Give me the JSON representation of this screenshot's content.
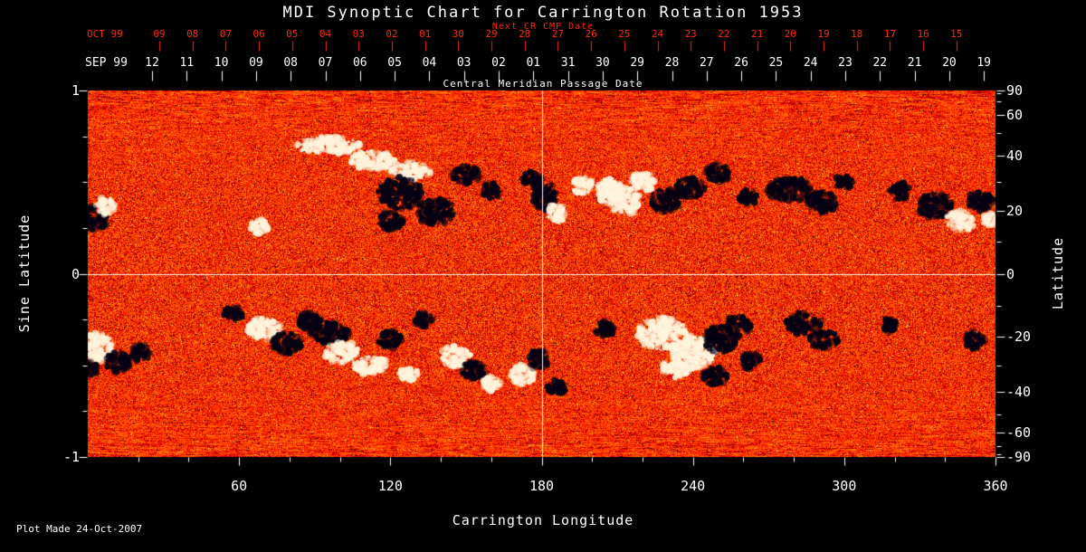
{
  "chart_data": {
    "type": "heatmap",
    "title": "MDI Synoptic Chart for Carrington Rotation 1953",
    "xlabel": "Carrington Longitude",
    "ylabel_left": "Sine Latitude",
    "ylabel_right": "Latitude",
    "plot_made": "Plot Made 24-Oct-2007",
    "xlim": [
      0,
      360
    ],
    "sine_lat_lim": [
      -1,
      1
    ],
    "x_ticks": [
      60,
      120,
      180,
      240,
      300,
      360
    ],
    "left_ticks": [
      "1",
      "0",
      "-1"
    ],
    "right_ticks_deg": [
      90,
      60,
      40,
      20,
      0,
      -20,
      -40,
      -60,
      -90
    ],
    "grid_lines": {
      "longitude": 180,
      "sine_latitude": 0
    },
    "next_cr_axis": {
      "title": "Next CR CMP Date",
      "prefix": "OCT 99",
      "days": [
        "09",
        "08",
        "07",
        "06",
        "05",
        "04",
        "03",
        "02",
        "01",
        "30",
        "29",
        "28",
        "27",
        "26",
        "25",
        "24",
        "23",
        "22",
        "21",
        "20",
        "19",
        "18",
        "17",
        "16",
        "15"
      ]
    },
    "cmp_axis": {
      "title": "Central Meridian Passage Date",
      "prefix": "SEP 99",
      "days": [
        "12",
        "11",
        "10",
        "09",
        "08",
        "07",
        "06",
        "05",
        "04",
        "03",
        "02",
        "01",
        "31",
        "30",
        "29",
        "28",
        "27",
        "26",
        "25",
        "24",
        "23",
        "22",
        "21",
        "20",
        "19"
      ]
    },
    "colors": {
      "background": "#000000",
      "axis": "#ffffff",
      "next_cr": "#ff2a00",
      "quiet_sun_mid": "#ff4400",
      "positive": "#fff4dc",
      "negative": "#050214",
      "grid": "#ffffff"
    },
    "region_fields": [
      "longitude_deg",
      "sine_latitude",
      "half_width_deg",
      "half_height_sinlat",
      "polarity"
    ],
    "active_regions": [
      [
        2,
        0.3,
        6,
        0.07,
        "neg"
      ],
      [
        7,
        0.37,
        4,
        0.05,
        "pos"
      ],
      [
        68,
        0.26,
        4,
        0.04,
        "pos"
      ],
      [
        95,
        0.7,
        13,
        0.05,
        "pos"
      ],
      [
        113,
        0.62,
        9,
        0.05,
        "pos"
      ],
      [
        128,
        0.56,
        8,
        0.05,
        "pos"
      ],
      [
        124,
        0.44,
        9,
        0.09,
        "neg"
      ],
      [
        138,
        0.34,
        8,
        0.07,
        "neg"
      ],
      [
        120,
        0.29,
        5,
        0.05,
        "neg"
      ],
      [
        150,
        0.54,
        6,
        0.05,
        "neg"
      ],
      [
        160,
        0.45,
        4,
        0.05,
        "neg"
      ],
      [
        176,
        0.52,
        4,
        0.04,
        "neg"
      ],
      [
        181,
        0.43,
        5,
        0.08,
        "neg"
      ],
      [
        186,
        0.33,
        4,
        0.05,
        "pos"
      ],
      [
        196,
        0.48,
        4,
        0.05,
        "pos"
      ],
      [
        207,
        0.45,
        5,
        0.07,
        "pos"
      ],
      [
        213,
        0.4,
        6,
        0.08,
        "pos"
      ],
      [
        220,
        0.5,
        5,
        0.05,
        "pos"
      ],
      [
        229,
        0.4,
        6,
        0.07,
        "neg"
      ],
      [
        239,
        0.47,
        6,
        0.06,
        "neg"
      ],
      [
        250,
        0.55,
        5,
        0.05,
        "neg"
      ],
      [
        262,
        0.42,
        4,
        0.04,
        "neg"
      ],
      [
        278,
        0.46,
        9,
        0.07,
        "neg"
      ],
      [
        291,
        0.39,
        6,
        0.06,
        "neg"
      ],
      [
        300,
        0.5,
        4,
        0.04,
        "neg"
      ],
      [
        322,
        0.45,
        4,
        0.05,
        "neg"
      ],
      [
        336,
        0.37,
        7,
        0.07,
        "neg"
      ],
      [
        346,
        0.29,
        6,
        0.06,
        "pos"
      ],
      [
        354,
        0.4,
        5,
        0.06,
        "neg"
      ],
      [
        358,
        0.3,
        3,
        0.04,
        "pos"
      ],
      [
        4,
        -0.4,
        6,
        0.08,
        "pos"
      ],
      [
        12,
        -0.48,
        5,
        0.06,
        "neg"
      ],
      [
        21,
        -0.43,
        4,
        0.05,
        "neg"
      ],
      [
        1,
        -0.52,
        3,
        0.04,
        "neg"
      ],
      [
        58,
        -0.22,
        4,
        0.04,
        "neg"
      ],
      [
        70,
        -0.3,
        7,
        0.06,
        "pos"
      ],
      [
        79,
        -0.38,
        6,
        0.06,
        "neg"
      ],
      [
        88,
        -0.26,
        5,
        0.05,
        "neg"
      ],
      [
        96,
        -0.32,
        8,
        0.06,
        "neg"
      ],
      [
        101,
        -0.43,
        7,
        0.06,
        "pos"
      ],
      [
        112,
        -0.5,
        7,
        0.05,
        "pos"
      ],
      [
        120,
        -0.36,
        5,
        0.05,
        "neg"
      ],
      [
        127,
        -0.55,
        4,
        0.04,
        "pos"
      ],
      [
        133,
        -0.25,
        4,
        0.04,
        "neg"
      ],
      [
        146,
        -0.45,
        6,
        0.06,
        "pos"
      ],
      [
        153,
        -0.53,
        5,
        0.05,
        "neg"
      ],
      [
        160,
        -0.6,
        4,
        0.04,
        "pos"
      ],
      [
        172,
        -0.55,
        5,
        0.06,
        "pos"
      ],
      [
        179,
        -0.47,
        4,
        0.06,
        "neg"
      ],
      [
        186,
        -0.62,
        4,
        0.04,
        "neg"
      ],
      [
        205,
        -0.3,
        4,
        0.04,
        "neg"
      ],
      [
        228,
        -0.33,
        10,
        0.09,
        "pos"
      ],
      [
        240,
        -0.43,
        9,
        0.09,
        "pos"
      ],
      [
        233,
        -0.52,
        6,
        0.05,
        "pos"
      ],
      [
        251,
        -0.36,
        7,
        0.08,
        "neg"
      ],
      [
        258,
        -0.28,
        5,
        0.06,
        "neg"
      ],
      [
        249,
        -0.56,
        5,
        0.05,
        "neg"
      ],
      [
        263,
        -0.47,
        4,
        0.05,
        "neg"
      ],
      [
        284,
        -0.27,
        7,
        0.06,
        "neg"
      ],
      [
        292,
        -0.36,
        6,
        0.05,
        "neg"
      ],
      [
        318,
        -0.28,
        3,
        0.04,
        "neg"
      ],
      [
        352,
        -0.36,
        4,
        0.05,
        "neg"
      ]
    ]
  }
}
